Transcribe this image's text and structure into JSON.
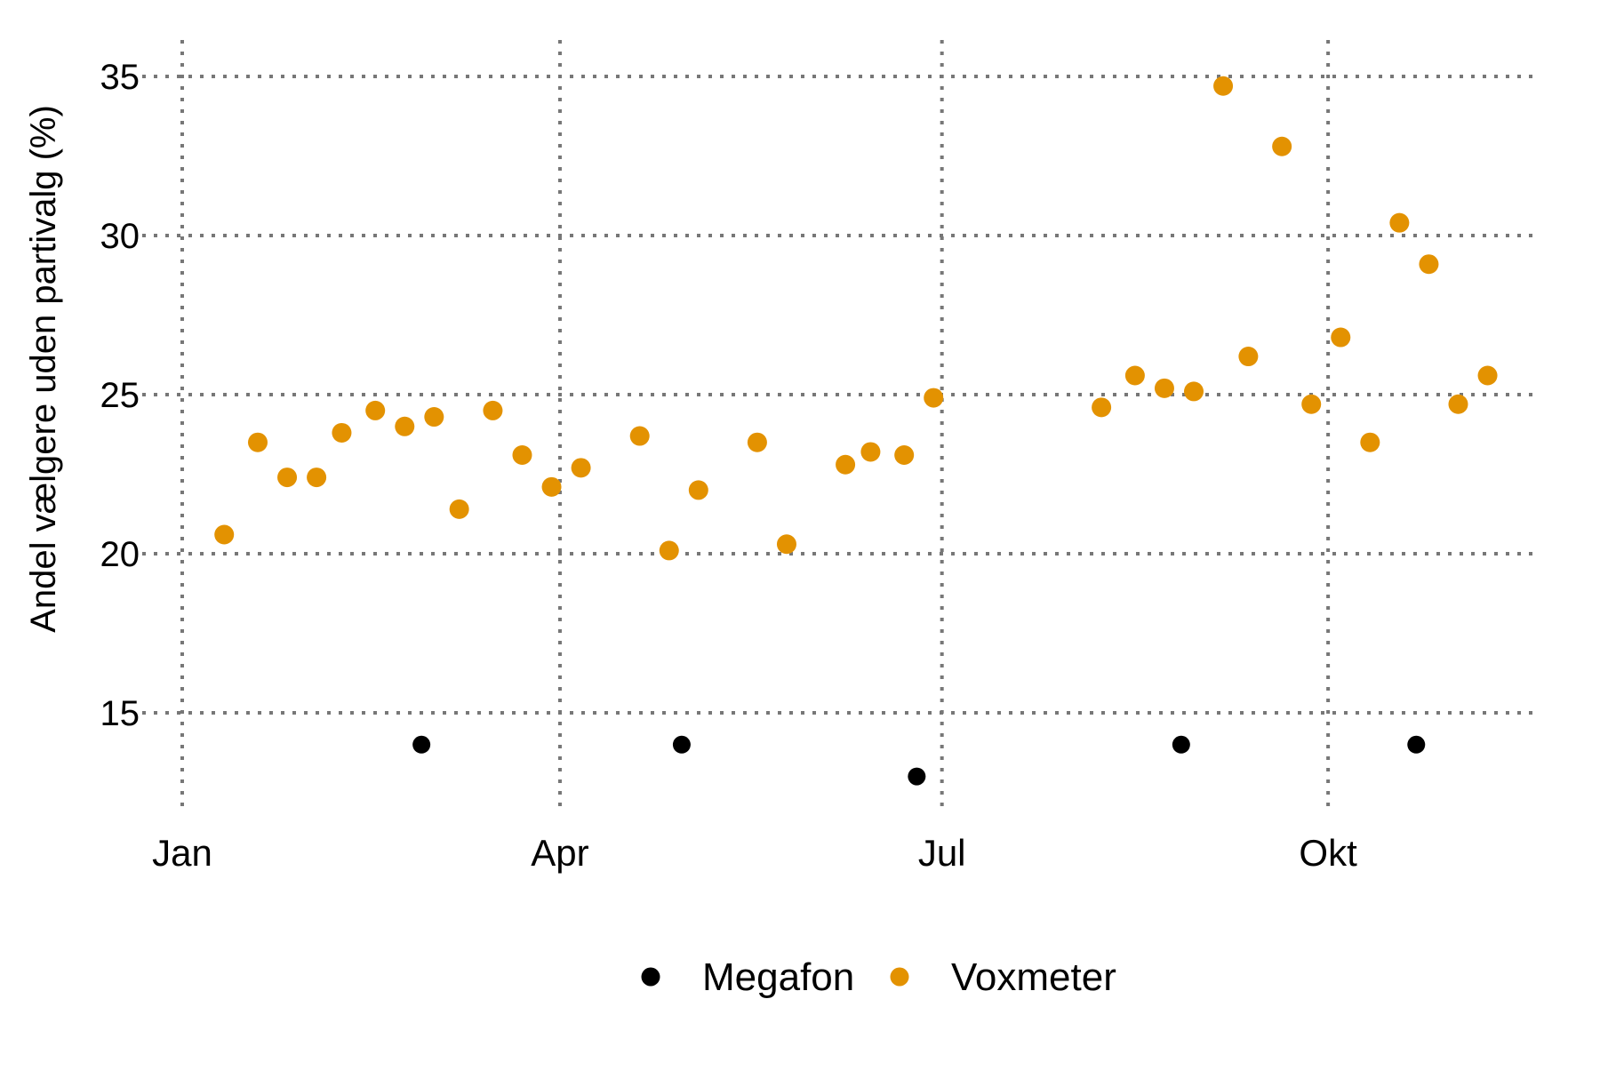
{
  "chart_data": {
    "type": "scatter",
    "title": "",
    "xlabel": "",
    "ylabel": "Andel vælgere uden partivalg (%)",
    "grid": "dotted",
    "legend_position": "bottom",
    "y_ticks": [
      15,
      20,
      25,
      30,
      35
    ],
    "ylim": [
      12.0,
      36.2
    ],
    "x_axis": {
      "tick_labels": [
        "Jan",
        "Apr",
        "Jul",
        "Okt"
      ],
      "tick_days": [
        0,
        90,
        181,
        273
      ],
      "xlim_days": [
        -9.5,
        324
      ]
    },
    "colors": {
      "megafon": "#000000",
      "voxmeter": "#E39201",
      "gridline": "#777777"
    },
    "series": [
      {
        "name": "Megafon",
        "color": "#000000",
        "points": [
          {
            "date": "27. feb",
            "day": 57,
            "value": 14.0
          },
          {
            "date": "30. apr",
            "day": 119,
            "value": 14.0
          },
          {
            "date": "25. jun",
            "day": 175,
            "value": 13.0
          },
          {
            "date": "27. aug",
            "day": 238,
            "value": 14.0
          },
          {
            "date": "22. okt",
            "day": 294,
            "value": 14.0
          }
        ]
      },
      {
        "name": "Voxmeter",
        "color": "#E39201",
        "points": [
          {
            "date": "11. jan",
            "day": 10,
            "value": 20.6
          },
          {
            "date": "19. jan",
            "day": 18,
            "value": 23.5
          },
          {
            "date": "26. jan",
            "day": 25,
            "value": 22.4
          },
          {
            "date": "2. feb",
            "day": 32,
            "value": 22.4
          },
          {
            "date": "8. feb",
            "day": 38,
            "value": 23.8
          },
          {
            "date": "16. feb",
            "day": 46,
            "value": 24.5
          },
          {
            "date": "23. feb",
            "day": 53,
            "value": 24.0
          },
          {
            "date": "2. mar",
            "day": 60,
            "value": 24.3
          },
          {
            "date": "8. mar",
            "day": 66,
            "value": 21.4
          },
          {
            "date": "16. mar",
            "day": 74,
            "value": 24.5
          },
          {
            "date": "23. mar",
            "day": 81,
            "value": 23.1
          },
          {
            "date": "30. mar",
            "day": 88,
            "value": 22.1
          },
          {
            "date": "6. apr",
            "day": 95,
            "value": 22.7
          },
          {
            "date": "20. apr",
            "day": 109,
            "value": 23.7
          },
          {
            "date": "27. apr",
            "day": 116,
            "value": 20.1
          },
          {
            "date": "4. maj",
            "day": 123,
            "value": 22.0
          },
          {
            "date": "18. maj",
            "day": 137,
            "value": 23.5
          },
          {
            "date": "25. maj",
            "day": 144,
            "value": 20.3
          },
          {
            "date": "8. jun",
            "day": 158,
            "value": 22.8
          },
          {
            "date": "14. jun",
            "day": 164,
            "value": 23.2
          },
          {
            "date": "22. jun",
            "day": 172,
            "value": 23.1
          },
          {
            "date": "29. jun",
            "day": 179,
            "value": 24.9
          },
          {
            "date": "8. aug",
            "day": 219,
            "value": 24.6
          },
          {
            "date": "16. aug",
            "day": 227,
            "value": 25.6
          },
          {
            "date": "23. aug",
            "day": 234,
            "value": 25.2
          },
          {
            "date": "30. aug",
            "day": 241,
            "value": 25.1
          },
          {
            "date": "6. sep",
            "day": 248,
            "value": 34.7
          },
          {
            "date": "12. sep",
            "day": 254,
            "value": 26.2
          },
          {
            "date": "20. sep",
            "day": 262,
            "value": 32.8
          },
          {
            "date": "27. sep",
            "day": 269,
            "value": 24.7
          },
          {
            "date": "4. okt",
            "day": 276,
            "value": 26.8
          },
          {
            "date": "11. okt",
            "day": 283,
            "value": 23.5
          },
          {
            "date": "18. okt",
            "day": 290,
            "value": 30.4
          },
          {
            "date": "25. okt",
            "day": 297,
            "value": 29.1
          },
          {
            "date": "1. nov",
            "day": 304,
            "value": 24.7
          },
          {
            "date": "8. nov",
            "day": 311,
            "value": 25.6
          }
        ]
      }
    ]
  }
}
